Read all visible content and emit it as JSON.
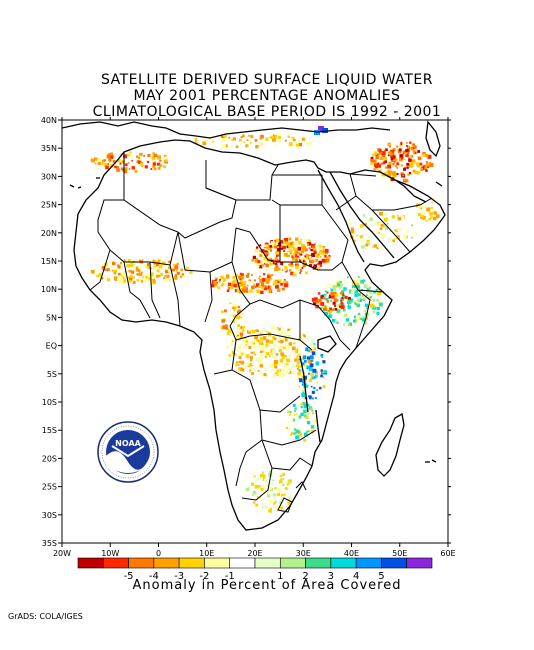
{
  "title": {
    "line1": "SATELLITE DERIVED SURFACE LIQUID WATER",
    "line2": "MAY 2001 PERCENTAGE ANOMALIES",
    "line3": "CLIMATOLOGICAL BASE PERIOD IS 1992 - 2001"
  },
  "map": {
    "lat_ticks": [
      "40N",
      "35N",
      "30N",
      "25N",
      "20N",
      "15N",
      "10N",
      "5N",
      "EQ",
      "5S",
      "10S",
      "15S",
      "20S",
      "25S",
      "30S",
      "35S"
    ],
    "lon_ticks": [
      "20W",
      "10W",
      "0",
      "10E",
      "20E",
      "30E",
      "40E",
      "50E",
      "60E"
    ],
    "lat_range": [
      -35,
      40
    ],
    "lon_range": [
      -20,
      60
    ]
  },
  "colorbar": {
    "colors": [
      "#c00000",
      "#ff2800",
      "#ff7800",
      "#ffa000",
      "#ffd200",
      "#ffffa0",
      "#ffffff",
      "#e6ffc8",
      "#b4f08c",
      "#3cdc8c",
      "#00dcdc",
      "#0096ff",
      "#0050e6",
      "#8c28dc"
    ],
    "labels": [
      "-5",
      "-4",
      "-3",
      "-2",
      "-1",
      "1",
      "2",
      "3",
      "4",
      "5"
    ]
  },
  "caption": "Anomaly in Percent of Area Covered",
  "credit": "GrADS: COLA/IGES",
  "logo": {
    "text": "NOAA"
  }
}
